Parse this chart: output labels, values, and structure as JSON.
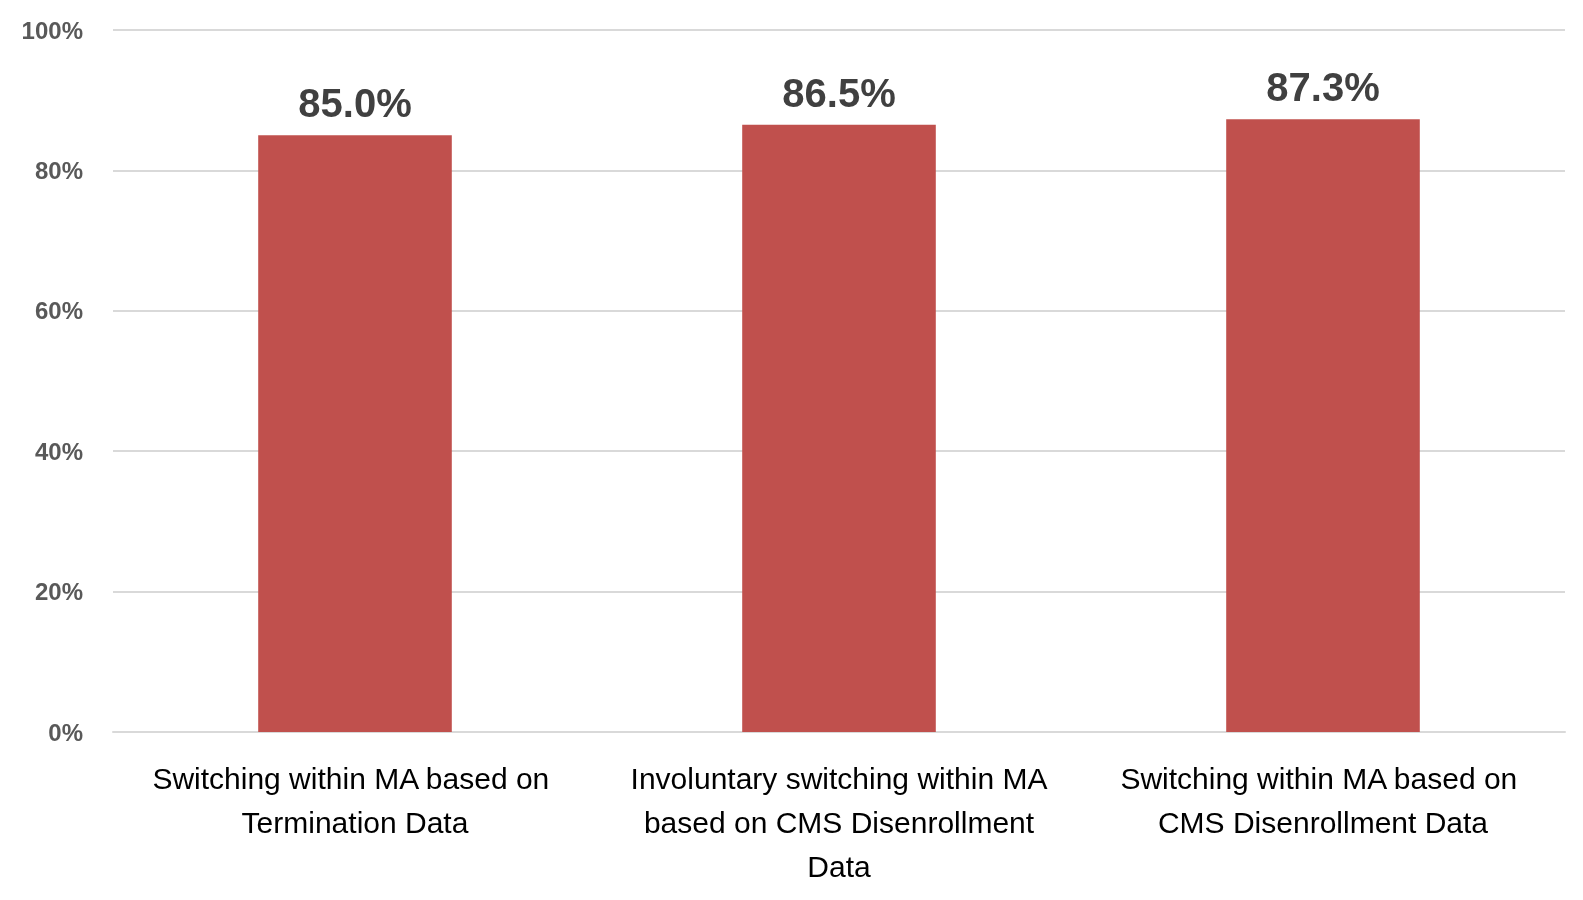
{
  "chart_data": {
    "type": "bar",
    "categories": [
      "Switching within MA based on Termination Data",
      "Involuntary switching within MA based on CMS Disenrollment Data",
      "Switching within MA based on CMS Disenrollment Data"
    ],
    "values": [
      85.0,
      86.5,
      87.3
    ],
    "color": "#c0504d",
    "value_labels": [
      "85.0%",
      "86.5%",
      "87.3%"
    ],
    "ylim": [
      0,
      100
    ],
    "yticks": [
      {
        "value": 0,
        "label": "0%"
      },
      {
        "value": 20,
        "label": "20%"
      },
      {
        "value": 40,
        "label": "40%"
      },
      {
        "value": 60,
        "label": "60%"
      },
      {
        "value": 80,
        "label": "80%"
      },
      {
        "value": 100,
        "label": "100%"
      }
    ],
    "grid": "y"
  }
}
